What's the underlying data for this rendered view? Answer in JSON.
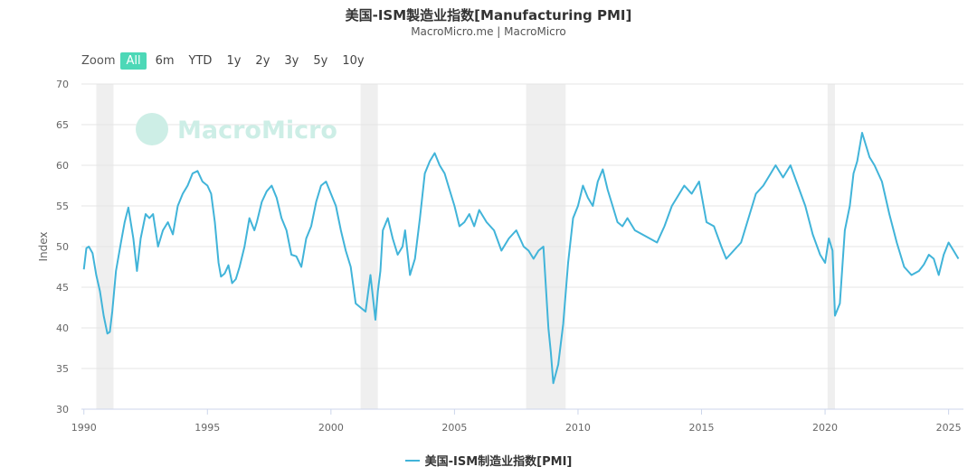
{
  "title": "美国-ISM製造业指数[Manufacturing PMI]",
  "subtitle": "MacroMicro.me | MacroMicro",
  "watermark": "MacroMicro",
  "zoom": {
    "label": "Zoom",
    "options": [
      "All",
      "6m",
      "YTD",
      "1y",
      "2y",
      "3y",
      "5y",
      "10y"
    ],
    "active": "All"
  },
  "legend": {
    "label": "美国-ISM制造业指数[PMI]"
  },
  "colors": {
    "series": "#41b4d9",
    "recession": "#efefef",
    "grid": "#e6e6e6",
    "zoom_active": "#4dd8b7",
    "watermark": "#cdeee6"
  },
  "chart_data": {
    "type": "line",
    "title": "美国-ISM製造业指数[Manufacturing PMI]",
    "ylabel": "Index",
    "xlabel": "",
    "ylim": [
      30,
      70
    ],
    "xlim": [
      1989.9,
      2025.6
    ],
    "yticks": [
      30,
      35,
      40,
      45,
      50,
      55,
      60,
      65,
      70
    ],
    "xticks": [
      1990,
      1995,
      2000,
      2005,
      2010,
      2015,
      2020,
      2025
    ],
    "grid": true,
    "legend_position": "bottom-center",
    "recessions": [
      [
        1990.5,
        1991.2
      ],
      [
        2001.2,
        2001.9
      ],
      [
        2007.9,
        2009.5
      ],
      [
        2020.1,
        2020.4
      ]
    ],
    "series": [
      {
        "name": "美国-ISM制造业指数[PMI]",
        "x": [
          1990.0,
          1990.1,
          1990.2,
          1990.35,
          1990.5,
          1990.65,
          1990.8,
          1990.95,
          1991.05,
          1991.15,
          1991.3,
          1991.5,
          1991.65,
          1991.8,
          1992.0,
          1992.15,
          1992.3,
          1992.5,
          1992.65,
          1992.8,
          1993.0,
          1993.2,
          1993.4,
          1993.6,
          1993.8,
          1994.0,
          1994.2,
          1994.4,
          1994.6,
          1994.8,
          1995.0,
          1995.15,
          1995.3,
          1995.45,
          1995.55,
          1995.7,
          1995.85,
          1996.0,
          1996.15,
          1996.3,
          1996.5,
          1996.7,
          1996.9,
          1997.0,
          1997.2,
          1997.4,
          1997.6,
          1997.8,
          1998.0,
          1998.2,
          1998.4,
          1998.6,
          1998.8,
          1999.0,
          1999.2,
          1999.4,
          1999.6,
          1999.8,
          2000.0,
          2000.2,
          2000.4,
          2000.6,
          2000.8,
          2001.0,
          2001.2,
          2001.4,
          2001.6,
          2001.8,
          2001.9,
          2002.0,
          2002.1,
          2002.3,
          2002.5,
          2002.7,
          2002.9,
          2003.0,
          2003.2,
          2003.4,
          2003.6,
          2003.8,
          2004.0,
          2004.2,
          2004.4,
          2004.6,
          2004.8,
          2005.0,
          2005.2,
          2005.4,
          2005.6,
          2005.8,
          2006.0,
          2006.3,
          2006.6,
          2006.9,
          2007.2,
          2007.5,
          2007.8,
          2008.0,
          2008.2,
          2008.4,
          2008.6,
          2008.8,
          2008.9,
          2009.0,
          2009.2,
          2009.4,
          2009.6,
          2009.8,
          2010.0,
          2010.2,
          2010.4,
          2010.6,
          2010.8,
          2011.0,
          2011.2,
          2011.4,
          2011.6,
          2011.8,
          2012.0,
          2012.3,
          2012.6,
          2012.9,
          2013.2,
          2013.5,
          2013.8,
          2014.0,
          2014.3,
          2014.6,
          2014.9,
          2015.2,
          2015.5,
          2015.8,
          2016.0,
          2016.3,
          2016.6,
          2016.9,
          2017.2,
          2017.5,
          2017.8,
          2018.0,
          2018.3,
          2018.6,
          2018.9,
          2019.2,
          2019.5,
          2019.8,
          2020.0,
          2020.15,
          2020.3,
          2020.4,
          2020.6,
          2020.8,
          2021.0,
          2021.15,
          2021.3,
          2021.5,
          2021.8,
          2022.0,
          2022.3,
          2022.6,
          2022.9,
          2023.2,
          2023.5,
          2023.8,
          2024.0,
          2024.2,
          2024.4,
          2024.6,
          2024.8,
          2025.0,
          2025.2,
          2025.4
        ],
        "values": [
          47.2,
          49.8,
          50.0,
          49.2,
          46.5,
          44.5,
          41.5,
          39.3,
          39.5,
          42.0,
          47.0,
          50.5,
          53.0,
          54.8,
          51.0,
          47.0,
          51.0,
          54.0,
          53.5,
          54.0,
          50.0,
          52.0,
          53.0,
          51.5,
          55.0,
          56.5,
          57.5,
          59.0,
          59.3,
          58.0,
          57.5,
          56.5,
          53.0,
          48.0,
          46.3,
          46.7,
          47.7,
          45.5,
          46.0,
          47.5,
          50.0,
          53.5,
          52.0,
          53.0,
          55.5,
          56.8,
          57.5,
          56.0,
          53.5,
          52.0,
          49.0,
          48.8,
          47.5,
          51.0,
          52.5,
          55.5,
          57.5,
          58.0,
          56.5,
          55.0,
          52.0,
          49.5,
          47.5,
          43.0,
          42.5,
          42.0,
          46.5,
          41.0,
          44.5,
          47.0,
          52.0,
          53.5,
          51.0,
          49.0,
          50.0,
          52.0,
          46.5,
          48.5,
          53.5,
          59.0,
          60.5,
          61.5,
          60.0,
          59.0,
          57.0,
          55.0,
          52.5,
          53.0,
          54.0,
          52.5,
          54.5,
          53.0,
          52.0,
          49.5,
          51.0,
          52.0,
          50.0,
          49.5,
          48.5,
          49.5,
          50.0,
          40.0,
          37.0,
          33.2,
          35.5,
          40.5,
          48.0,
          53.5,
          55.0,
          57.5,
          56.0,
          55.0,
          58.0,
          59.5,
          57.0,
          55.0,
          53.0,
          52.5,
          53.5,
          52.0,
          51.5,
          51.0,
          50.5,
          52.5,
          55.0,
          56.0,
          57.5,
          56.5,
          58.0,
          53.0,
          52.5,
          50.0,
          48.5,
          49.5,
          50.5,
          53.5,
          56.5,
          57.5,
          59.0,
          60.0,
          58.5,
          60.0,
          57.5,
          55.0,
          51.5,
          49.0,
          48.0,
          51.0,
          49.5,
          41.5,
          43.0,
          52.0,
          55.0,
          59.0,
          60.5,
          64.0,
          61.0,
          60.0,
          58.0,
          54.0,
          50.5,
          47.5,
          46.5,
          47.0,
          47.8,
          49.0,
          48.5,
          46.5,
          49.0,
          50.5,
          49.5,
          48.5
        ]
      }
    ]
  }
}
